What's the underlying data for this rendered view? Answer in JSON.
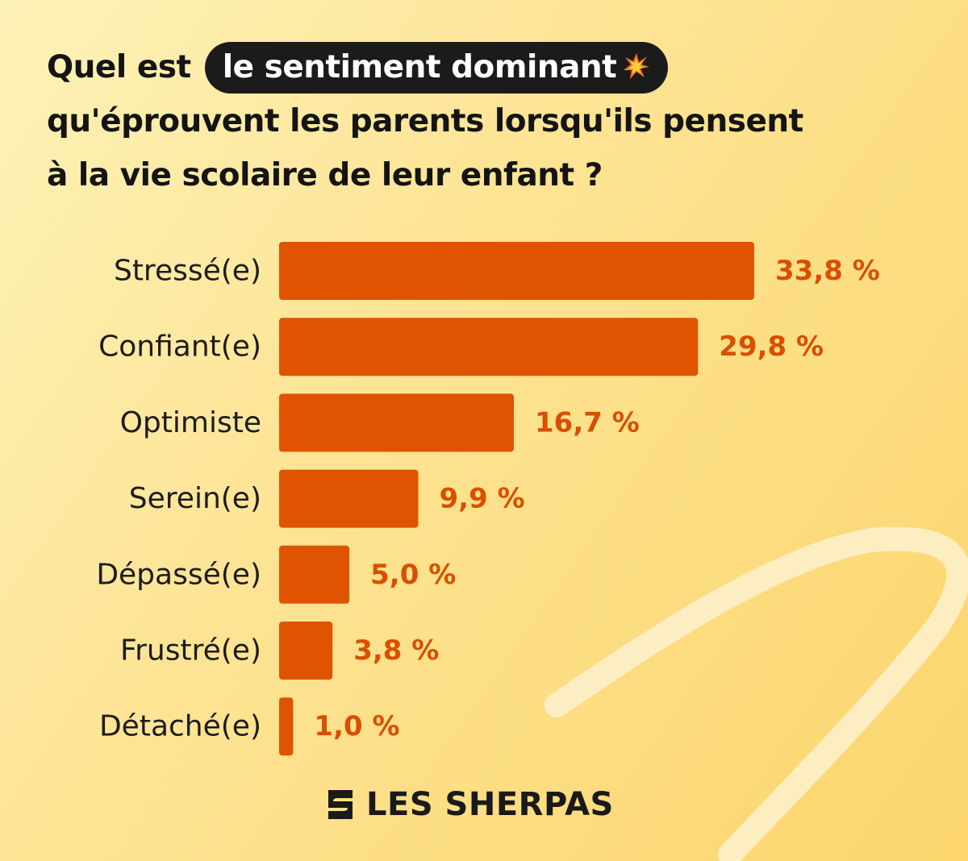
{
  "title": {
    "line1_prefix": "Quel est",
    "line1_highlight": "le sentiment dominant",
    "line2": "qu'éprouvent les parents lorsqu'ils pensent",
    "line3": "à la vie scolaire de leur enfant ?"
  },
  "colors": {
    "bar": "#e05300",
    "value_label": "#d94f00",
    "category_label": "#1c1c1c"
  },
  "chart_data": {
    "type": "bar",
    "orientation": "horizontal",
    "categories": [
      "Stressé(e)",
      "Confiant(e)",
      "Optimiste",
      "Serein(e)",
      "Dépassé(e)",
      "Frustré(e)",
      "Détaché(e)"
    ],
    "values": [
      33.8,
      29.8,
      16.7,
      9.9,
      5.0,
      3.8,
      1.0
    ],
    "value_labels": [
      "33,8 %",
      "29,8 %",
      "16,7 %",
      "9,9 %",
      "5,0 %",
      "3,8 %",
      "1,0 %"
    ],
    "unit": "%",
    "xlim": [
      0,
      33.8
    ],
    "grid": false,
    "legend": "none"
  },
  "brand": {
    "name": "LES SHERPAS",
    "logo_icon": "sherpas-s-icon"
  }
}
